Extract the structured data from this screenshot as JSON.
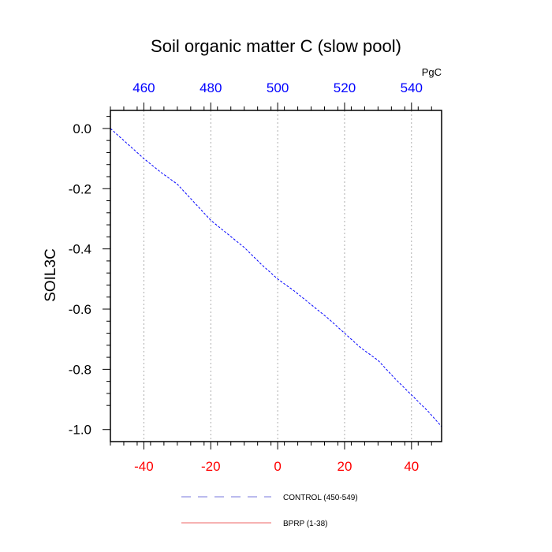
{
  "chart_data": {
    "type": "line",
    "title": "Soil organic matter C (slow pool)",
    "ylabel": "SOIL3C",
    "top_axis_unit": "PgC",
    "x_range": [
      -50,
      49
    ],
    "y_range": [
      -1.04,
      0.06
    ],
    "bottom_ticks": [
      "-40",
      "-20",
      "0",
      "20",
      "40"
    ],
    "bottom_tick_values": [
      -40,
      -20,
      0,
      20,
      40
    ],
    "top_ticks": [
      "460",
      "480",
      "500",
      "520",
      "540"
    ],
    "top_tick_values": [
      460,
      480,
      500,
      520,
      540
    ],
    "top_axis_offset": 500,
    "y_ticks": [
      "0.0",
      "-0.2",
      "-0.4",
      "-0.6",
      "-0.8",
      "-1.0"
    ],
    "y_tick_values": [
      0.0,
      -0.2,
      -0.4,
      -0.6,
      -0.8,
      -1.0
    ],
    "grid": "vertical dotted at major x ticks",
    "legend_position": "bottom",
    "colors": {
      "bottom_axis": "#ff0000",
      "top_axis": "#0000ff",
      "control_line": "#0000ff",
      "bprp_line": "#ff0000",
      "grid": "#999999"
    },
    "series": [
      {
        "name": "CONTROL (450-549)",
        "style": "dashed",
        "x": [
          -50,
          -45,
          -40,
          -35,
          -30,
          -25,
          -20,
          -15,
          -10,
          -5,
          0,
          5,
          10,
          15,
          20,
          25,
          30,
          35,
          40,
          45,
          49
        ],
        "y": [
          0.0,
          -0.05,
          -0.1,
          -0.145,
          -0.185,
          -0.245,
          -0.305,
          -0.35,
          -0.395,
          -0.45,
          -0.5,
          -0.54,
          -0.585,
          -0.63,
          -0.68,
          -0.73,
          -0.77,
          -0.83,
          -0.885,
          -0.94,
          -0.99
        ]
      },
      {
        "name": "BPRP (1-38)",
        "style": "solid",
        "x": [],
        "y": []
      }
    ]
  }
}
